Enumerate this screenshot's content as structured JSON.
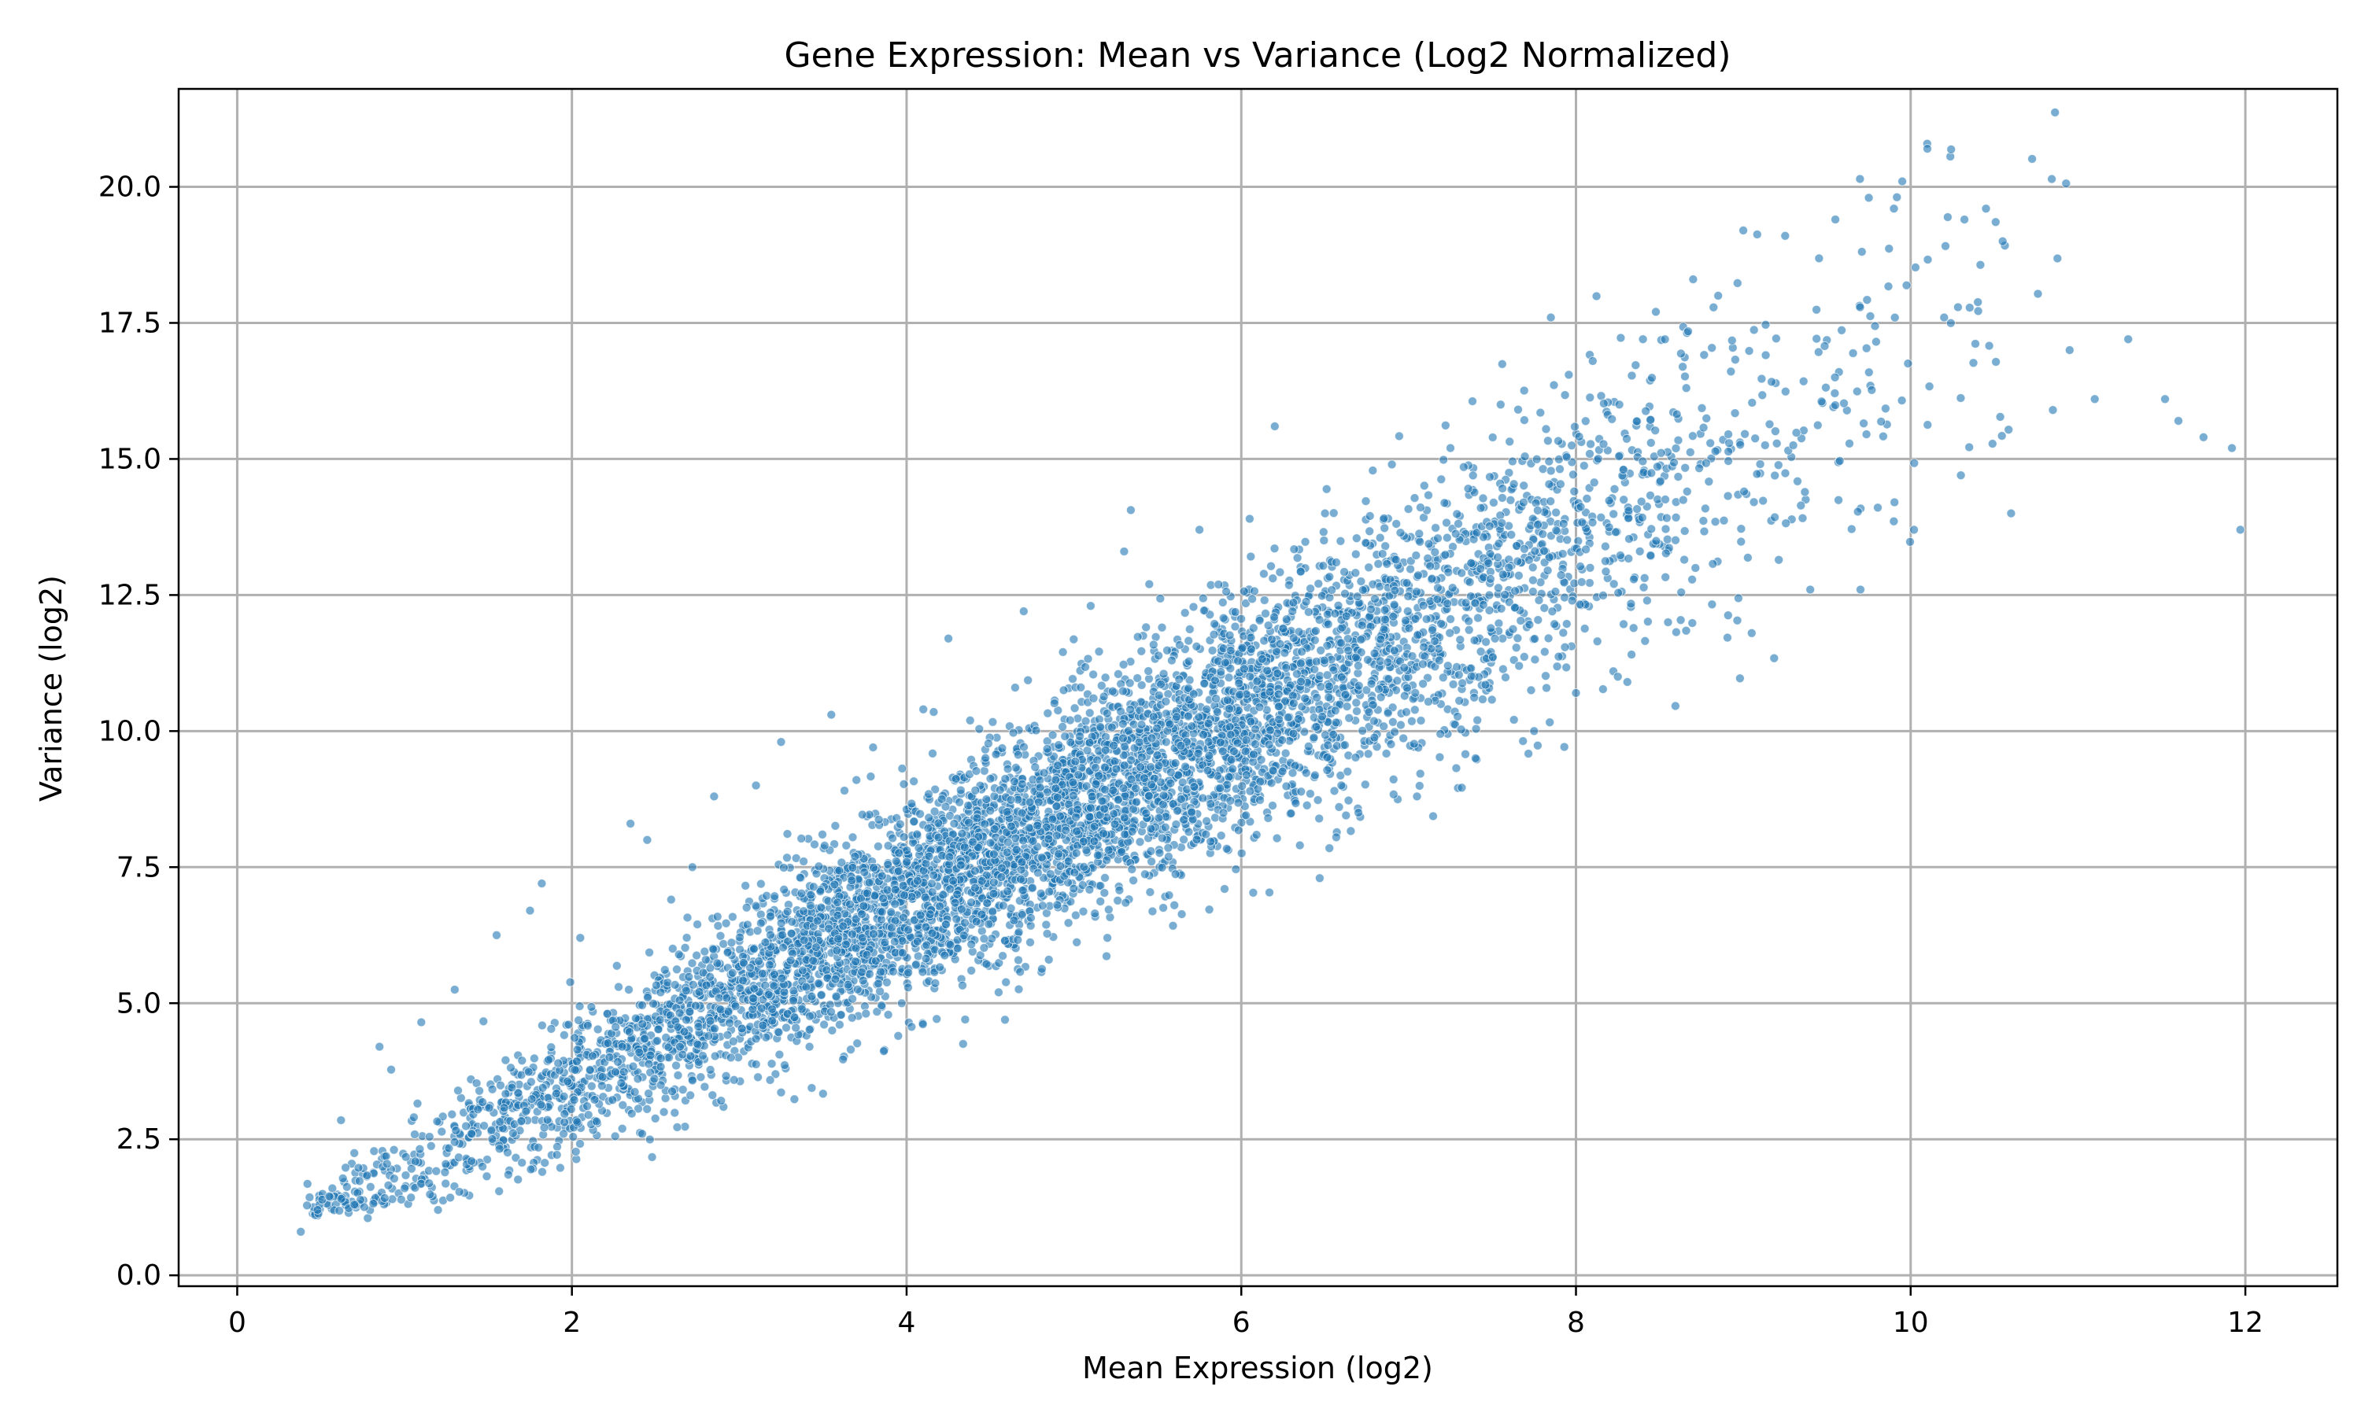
{
  "chart_data": {
    "type": "scatter",
    "title": "Gene Expression: Mean vs Variance (Log2 Normalized)",
    "xlabel": "Mean Expression (log2)",
    "ylabel": "Variance (log2)",
    "xlim": [
      -0.35,
      12.55
    ],
    "ylim": [
      -0.2,
      21.8
    ],
    "xticks": [
      0,
      2,
      4,
      6,
      8,
      10,
      12
    ],
    "xtick_labels": [
      "0",
      "2",
      "4",
      "6",
      "8",
      "10",
      "12"
    ],
    "yticks": [
      0.0,
      2.5,
      5.0,
      7.5,
      10.0,
      12.5,
      15.0,
      17.5,
      20.0
    ],
    "ytick_labels": [
      "0.0",
      "2.5",
      "5.0",
      "7.5",
      "10.0",
      "12.5",
      "15.0",
      "17.5",
      "20.0"
    ],
    "grid": true,
    "marker_color": "#1f77b4",
    "marker_edge_color": "#ffffff",
    "marker_alpha": 0.6,
    "approx_point_count": 6000,
    "trend": {
      "description": "variance ≈ 1.67 × mean, spread widening with mean"
    },
    "series": [
      {
        "points": [
          [
            0.38,
            0.8
          ],
          [
            0.42,
            1.68
          ],
          [
            0.48,
            1.2
          ],
          [
            0.55,
            1.45
          ],
          [
            0.62,
            2.85
          ],
          [
            0.7,
            1.3
          ],
          [
            0.78,
            1.05
          ],
          [
            0.85,
            4.2
          ],
          [
            0.92,
            3.78
          ],
          [
            1.0,
            1.6
          ],
          [
            1.1,
            4.65
          ],
          [
            1.2,
            1.2
          ],
          [
            1.3,
            5.25
          ],
          [
            1.4,
            2.1
          ],
          [
            1.55,
            6.25
          ],
          [
            1.62,
            1.85
          ],
          [
            1.75,
            6.7
          ],
          [
            1.82,
            7.2
          ],
          [
            1.95,
            2.6
          ],
          [
            2.05,
            6.2
          ],
          [
            2.35,
            8.3
          ],
          [
            2.42,
            2.6
          ],
          [
            2.45,
            8.0
          ],
          [
            2.55,
            3.0
          ],
          [
            2.72,
            7.5
          ],
          [
            2.85,
            8.8
          ],
          [
            2.95,
            4.0
          ],
          [
            3.1,
            9.0
          ],
          [
            3.25,
            9.8
          ],
          [
            3.42,
            4.2
          ],
          [
            3.55,
            10.3
          ],
          [
            3.7,
            9.1
          ],
          [
            3.8,
            9.7
          ],
          [
            3.95,
            4.4
          ],
          [
            4.1,
            10.4
          ],
          [
            4.25,
            11.7
          ],
          [
            4.35,
            4.7
          ],
          [
            4.55,
            5.2
          ],
          [
            4.7,
            12.2
          ],
          [
            4.85,
            5.8
          ],
          [
            5.1,
            12.3
          ],
          [
            5.2,
            6.2
          ],
          [
            5.3,
            13.3
          ],
          [
            5.45,
            12.7
          ],
          [
            5.6,
            6.8
          ],
          [
            5.75,
            13.7
          ],
          [
            5.9,
            7.1
          ],
          [
            6.05,
            13.9
          ],
          [
            6.2,
            15.6
          ],
          [
            6.35,
            7.9
          ],
          [
            6.5,
            14.0
          ],
          [
            6.7,
            8.5
          ],
          [
            6.9,
            14.9
          ],
          [
            7.05,
            8.8
          ],
          [
            7.25,
            15.2
          ],
          [
            7.4,
            9.5
          ],
          [
            7.55,
            16.0
          ],
          [
            7.75,
            10.0
          ],
          [
            7.85,
            17.6
          ],
          [
            8.0,
            10.7
          ],
          [
            8.1,
            16.8
          ],
          [
            8.25,
            11.0
          ],
          [
            8.4,
            17.2
          ],
          [
            8.55,
            12.0
          ],
          [
            8.7,
            18.3
          ],
          [
            8.85,
            18.0
          ],
          [
            9.0,
            19.2
          ],
          [
            9.05,
            11.8
          ],
          [
            9.25,
            19.1
          ],
          [
            9.4,
            12.6
          ],
          [
            9.55,
            19.4
          ],
          [
            9.7,
            12.6
          ],
          [
            9.75,
            19.8
          ],
          [
            9.9,
            19.6
          ],
          [
            9.95,
            20.1
          ],
          [
            10.02,
            13.7
          ],
          [
            10.1,
            20.7
          ],
          [
            10.2,
            17.6
          ],
          [
            10.3,
            14.7
          ],
          [
            10.45,
            19.6
          ],
          [
            10.55,
            19.0
          ],
          [
            10.6,
            14.0
          ],
          [
            10.85,
            15.9
          ],
          [
            10.95,
            17.0
          ],
          [
            11.1,
            16.1
          ],
          [
            11.3,
            17.2
          ],
          [
            11.52,
            16.1
          ],
          [
            11.6,
            15.7
          ],
          [
            11.75,
            15.4
          ],
          [
            11.92,
            15.2
          ],
          [
            11.97,
            13.7
          ]
        ]
      }
    ]
  }
}
